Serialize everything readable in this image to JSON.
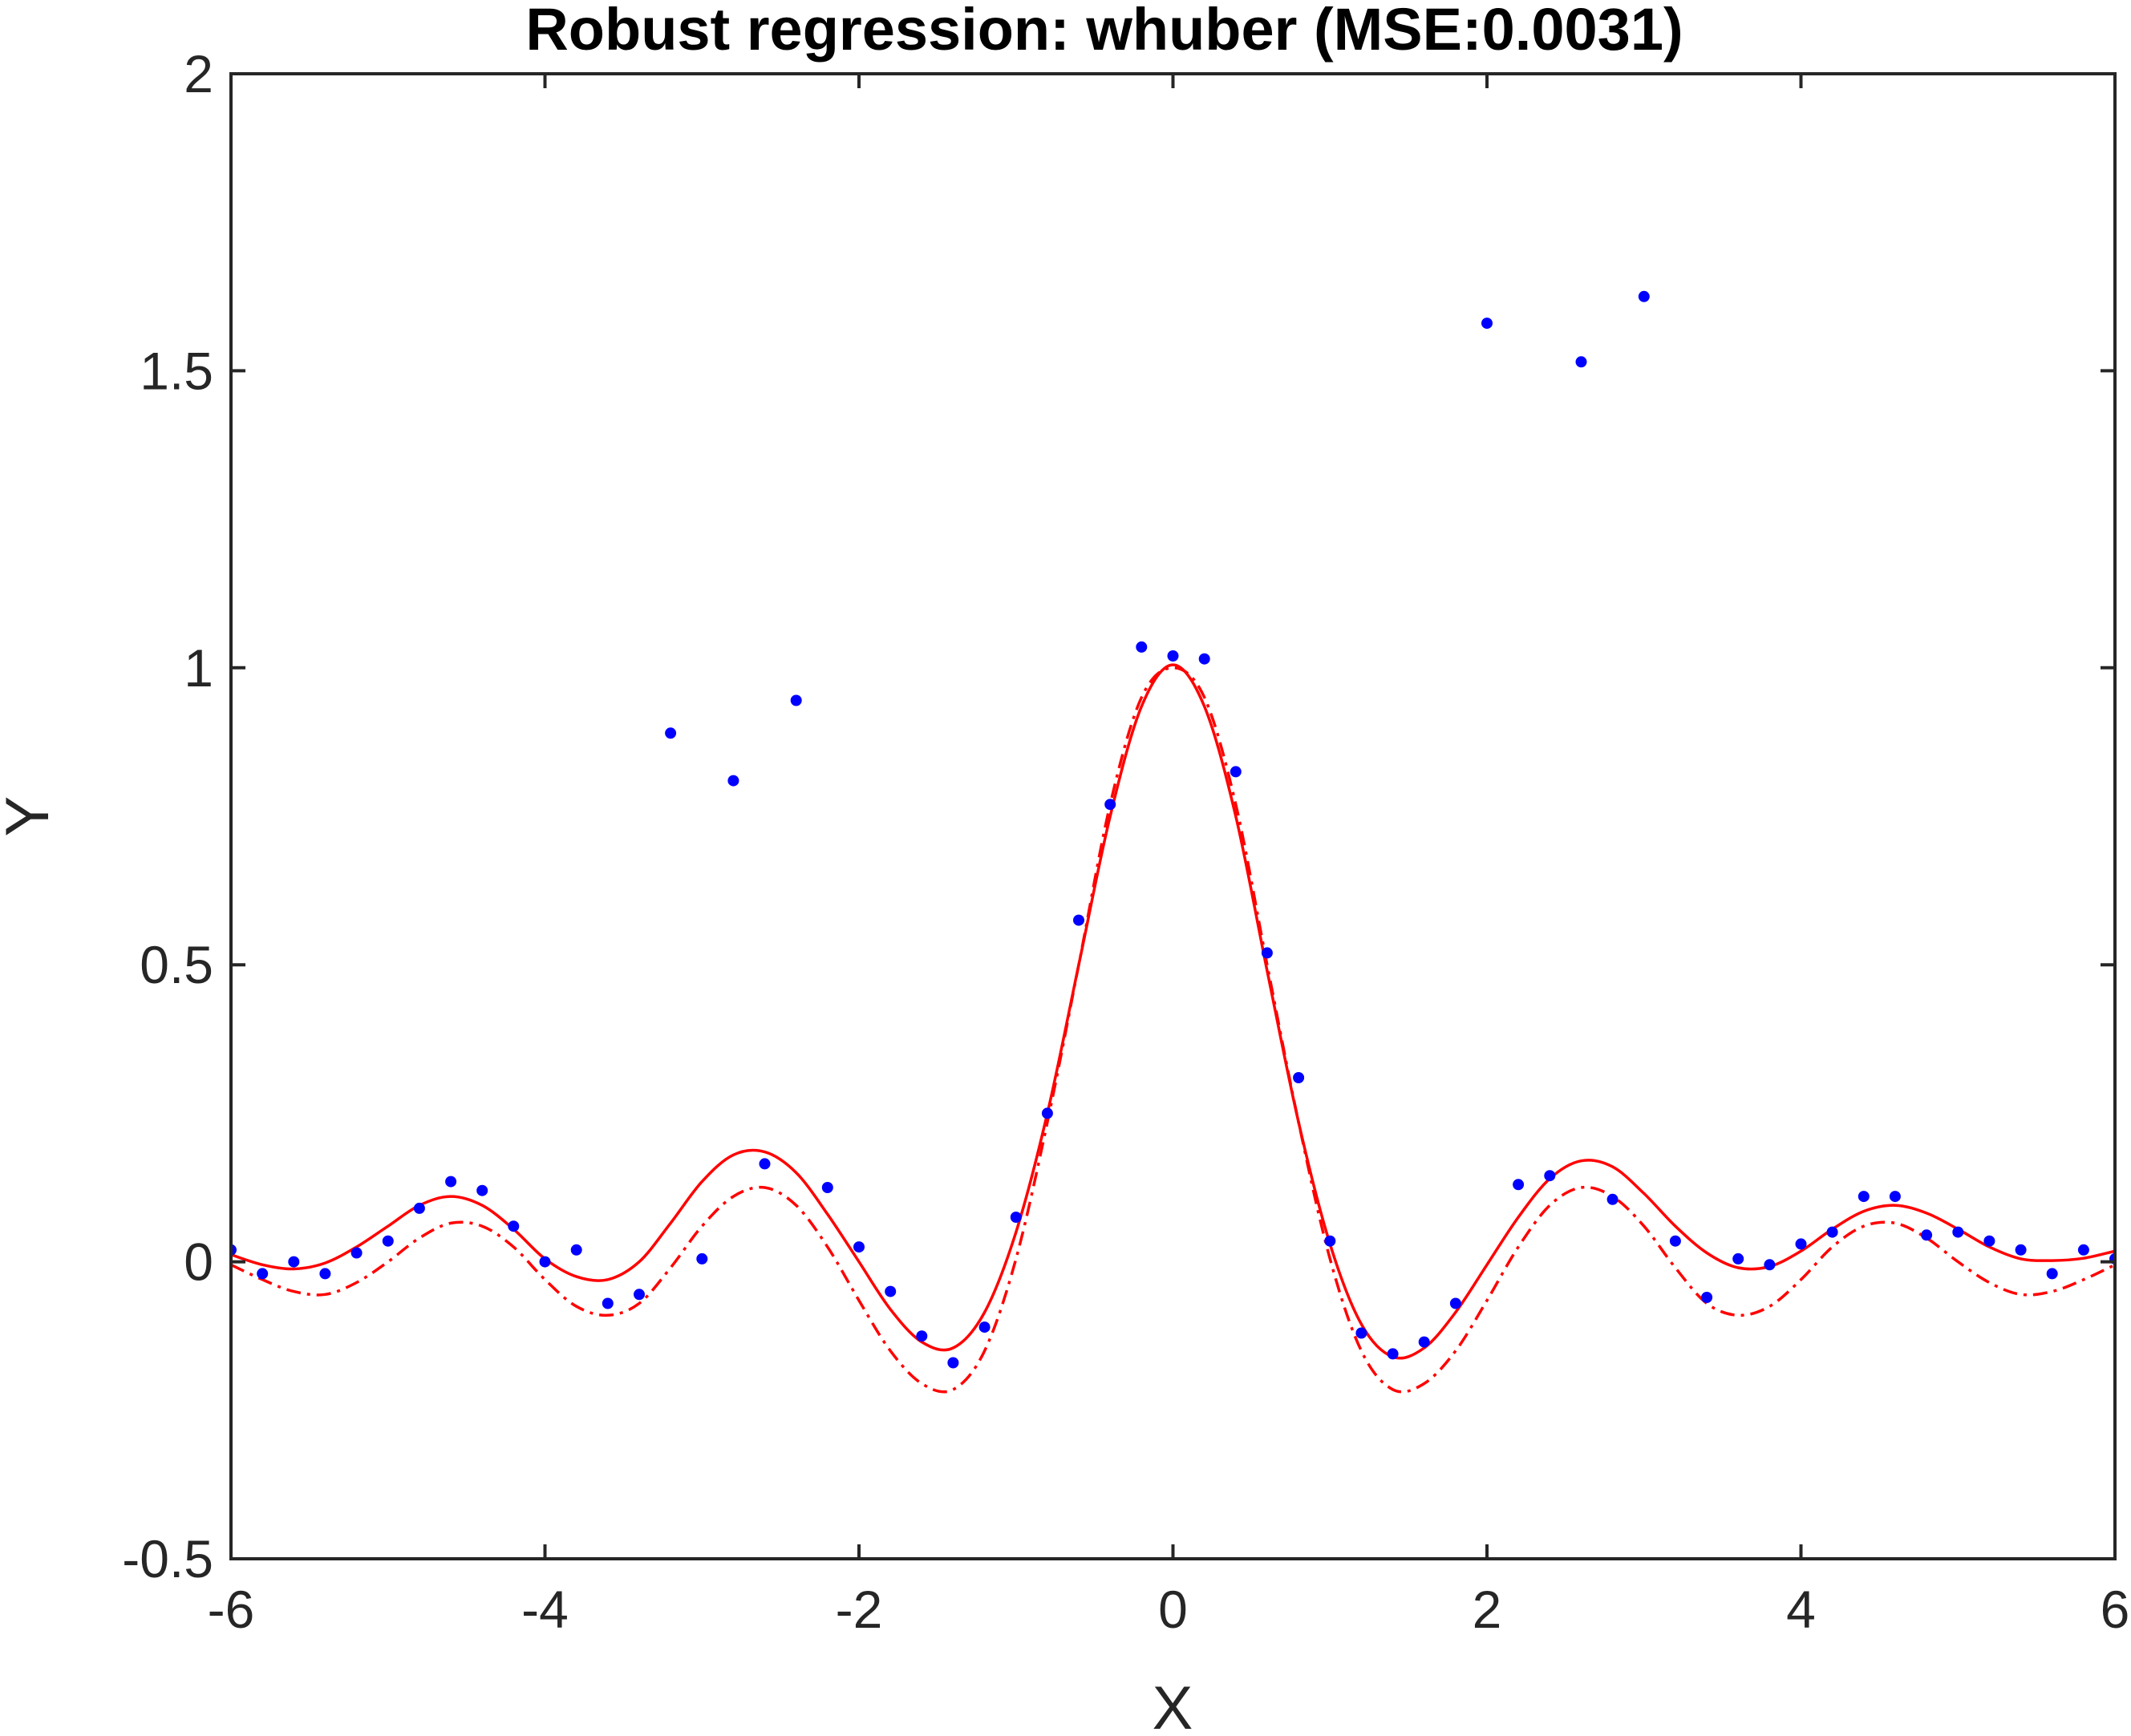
{
  "chart_data": {
    "type": "scatter",
    "title": "Robust regression: whuber (MSE:0.0031)",
    "xlabel": "X",
    "ylabel": "Y",
    "xlim": [
      -6,
      6
    ],
    "ylim": [
      -0.5,
      2
    ],
    "xticks": [
      -6,
      -4,
      -2,
      0,
      2,
      4,
      6
    ],
    "xtick_labels": [
      "-6",
      "-4",
      "-2",
      "0",
      "2",
      "4",
      "6"
    ],
    "yticks": [
      -0.5,
      0,
      0.5,
      1,
      1.5,
      2
    ],
    "ytick_labels": [
      "-0.5",
      "0",
      "0.5",
      "1",
      "1.5",
      "2"
    ],
    "grid": false,
    "box": true,
    "colors": {
      "points": "#0000ff",
      "fit": "#ff0000",
      "axes": "#262626"
    },
    "series": [
      {
        "kind": "points",
        "x": [
          -6.0,
          -5.8,
          -5.6,
          -5.4,
          -5.2,
          -5.0,
          -4.8,
          -4.6,
          -4.4,
          -4.2,
          -4.0,
          -3.8,
          -3.6,
          -3.4,
          -3.2,
          -3.0,
          -2.8,
          -2.6,
          -2.4,
          -2.2,
          -2.0,
          -1.8,
          -1.6,
          -1.4,
          -1.2,
          -1.0,
          -0.8,
          -0.6,
          -0.4,
          -0.2,
          0.0,
          0.2,
          0.4,
          0.6,
          0.8,
          1.0,
          1.2,
          1.4,
          1.6,
          1.8,
          2.0,
          2.2,
          2.4,
          2.6,
          2.8,
          3.0,
          3.2,
          3.4,
          3.6,
          3.8,
          4.0,
          4.2,
          4.4,
          4.6,
          4.8,
          5.0,
          5.2,
          5.4,
          5.6,
          5.8,
          6.0
        ],
        "y": [
          0.02,
          -0.02,
          0.0,
          -0.02,
          0.015,
          0.035,
          0.09,
          0.135,
          0.12,
          0.06,
          0.0,
          0.02,
          -0.07,
          -0.055,
          0.89,
          0.005,
          0.81,
          0.165,
          0.945,
          0.125,
          0.025,
          -0.05,
          -0.125,
          -0.17,
          -0.11,
          0.075,
          0.25,
          0.575,
          0.77,
          1.035,
          1.02,
          1.015,
          0.825,
          0.52,
          0.31,
          0.035,
          -0.12,
          -0.155,
          -0.135,
          -0.07,
          1.58,
          0.13,
          0.145,
          1.515,
          0.105,
          1.625,
          0.035,
          -0.06,
          0.005,
          -0.005,
          0.03,
          0.05,
          0.11,
          0.11,
          0.045,
          0.05,
          0.035,
          0.02,
          -0.02,
          0.02,
          0.005
        ]
      },
      {
        "kind": "fit",
        "line_style": "solid",
        "x": [
          -6.0,
          -5.8,
          -5.6,
          -5.4,
          -5.2,
          -5.0,
          -4.8,
          -4.6,
          -4.4,
          -4.2,
          -4.0,
          -3.8,
          -3.6,
          -3.4,
          -3.2,
          -3.0,
          -2.8,
          -2.6,
          -2.4,
          -2.2,
          -2.0,
          -1.8,
          -1.6,
          -1.4,
          -1.2,
          -1.0,
          -0.8,
          -0.6,
          -0.4,
          -0.2,
          0.0,
          0.2,
          0.4,
          0.6,
          0.8,
          1.0,
          1.2,
          1.4,
          1.6,
          1.8,
          2.0,
          2.2,
          2.4,
          2.6,
          2.8,
          3.0,
          3.2,
          3.4,
          3.6,
          3.8,
          4.0,
          4.2,
          4.4,
          4.6,
          4.8,
          5.0,
          5.2,
          5.4,
          5.6,
          5.8,
          6.0
        ],
        "y": [
          0.012,
          -0.005,
          -0.012,
          -0.002,
          0.025,
          0.06,
          0.095,
          0.11,
          0.095,
          0.055,
          0.005,
          -0.025,
          -0.03,
          0.0,
          0.065,
          0.135,
          0.18,
          0.185,
          0.15,
          0.08,
          0.0,
          -0.08,
          -0.135,
          -0.145,
          -0.085,
          0.05,
          0.25,
          0.5,
          0.75,
          0.935,
          1.005,
          0.935,
          0.75,
          0.49,
          0.235,
          0.03,
          -0.105,
          -0.16,
          -0.145,
          -0.085,
          -0.005,
          0.075,
          0.14,
          0.17,
          0.16,
          0.115,
          0.06,
          0.015,
          -0.01,
          -0.008,
          0.018,
          0.055,
          0.085,
          0.095,
          0.082,
          0.055,
          0.025,
          0.005,
          0.002,
          0.006,
          0.018
        ]
      },
      {
        "kind": "fit",
        "line_style": "dashdot",
        "x": [
          -6.0,
          -5.8,
          -5.6,
          -5.4,
          -5.2,
          -5.0,
          -4.8,
          -4.6,
          -4.4,
          -4.2,
          -4.0,
          -3.8,
          -3.6,
          -3.4,
          -3.2,
          -3.0,
          -2.8,
          -2.6,
          -2.4,
          -2.2,
          -2.0,
          -1.8,
          -1.6,
          -1.4,
          -1.2,
          -1.0,
          -0.8,
          -0.6,
          -0.4,
          -0.2,
          0.0,
          0.2,
          0.4,
          0.6,
          0.8,
          1.0,
          1.2,
          1.4,
          1.6,
          1.8,
          2.0,
          2.2,
          2.4,
          2.6,
          2.8,
          3.0,
          3.2,
          3.4,
          3.6,
          3.8,
          4.0,
          4.2,
          4.4,
          4.6,
          4.8,
          5.0,
          5.2,
          5.4,
          5.6,
          5.8,
          6.0
        ],
        "y": [
          -0.005,
          -0.03,
          -0.05,
          -0.055,
          -0.035,
          0.0,
          0.04,
          0.065,
          0.06,
          0.025,
          -0.03,
          -0.075,
          -0.09,
          -0.07,
          -0.01,
          0.06,
          0.11,
          0.125,
          0.095,
          0.025,
          -0.065,
          -0.15,
          -0.205,
          -0.215,
          -0.15,
          0.005,
          0.235,
          0.5,
          0.77,
          0.95,
          1.0,
          0.95,
          0.77,
          0.5,
          0.235,
          0.005,
          -0.15,
          -0.215,
          -0.205,
          -0.15,
          -0.065,
          0.025,
          0.095,
          0.125,
          0.11,
          0.06,
          -0.01,
          -0.07,
          -0.09,
          -0.075,
          -0.03,
          0.025,
          0.06,
          0.065,
          0.04,
          0.0,
          -0.035,
          -0.055,
          -0.05,
          -0.03,
          -0.005
        ]
      }
    ]
  }
}
